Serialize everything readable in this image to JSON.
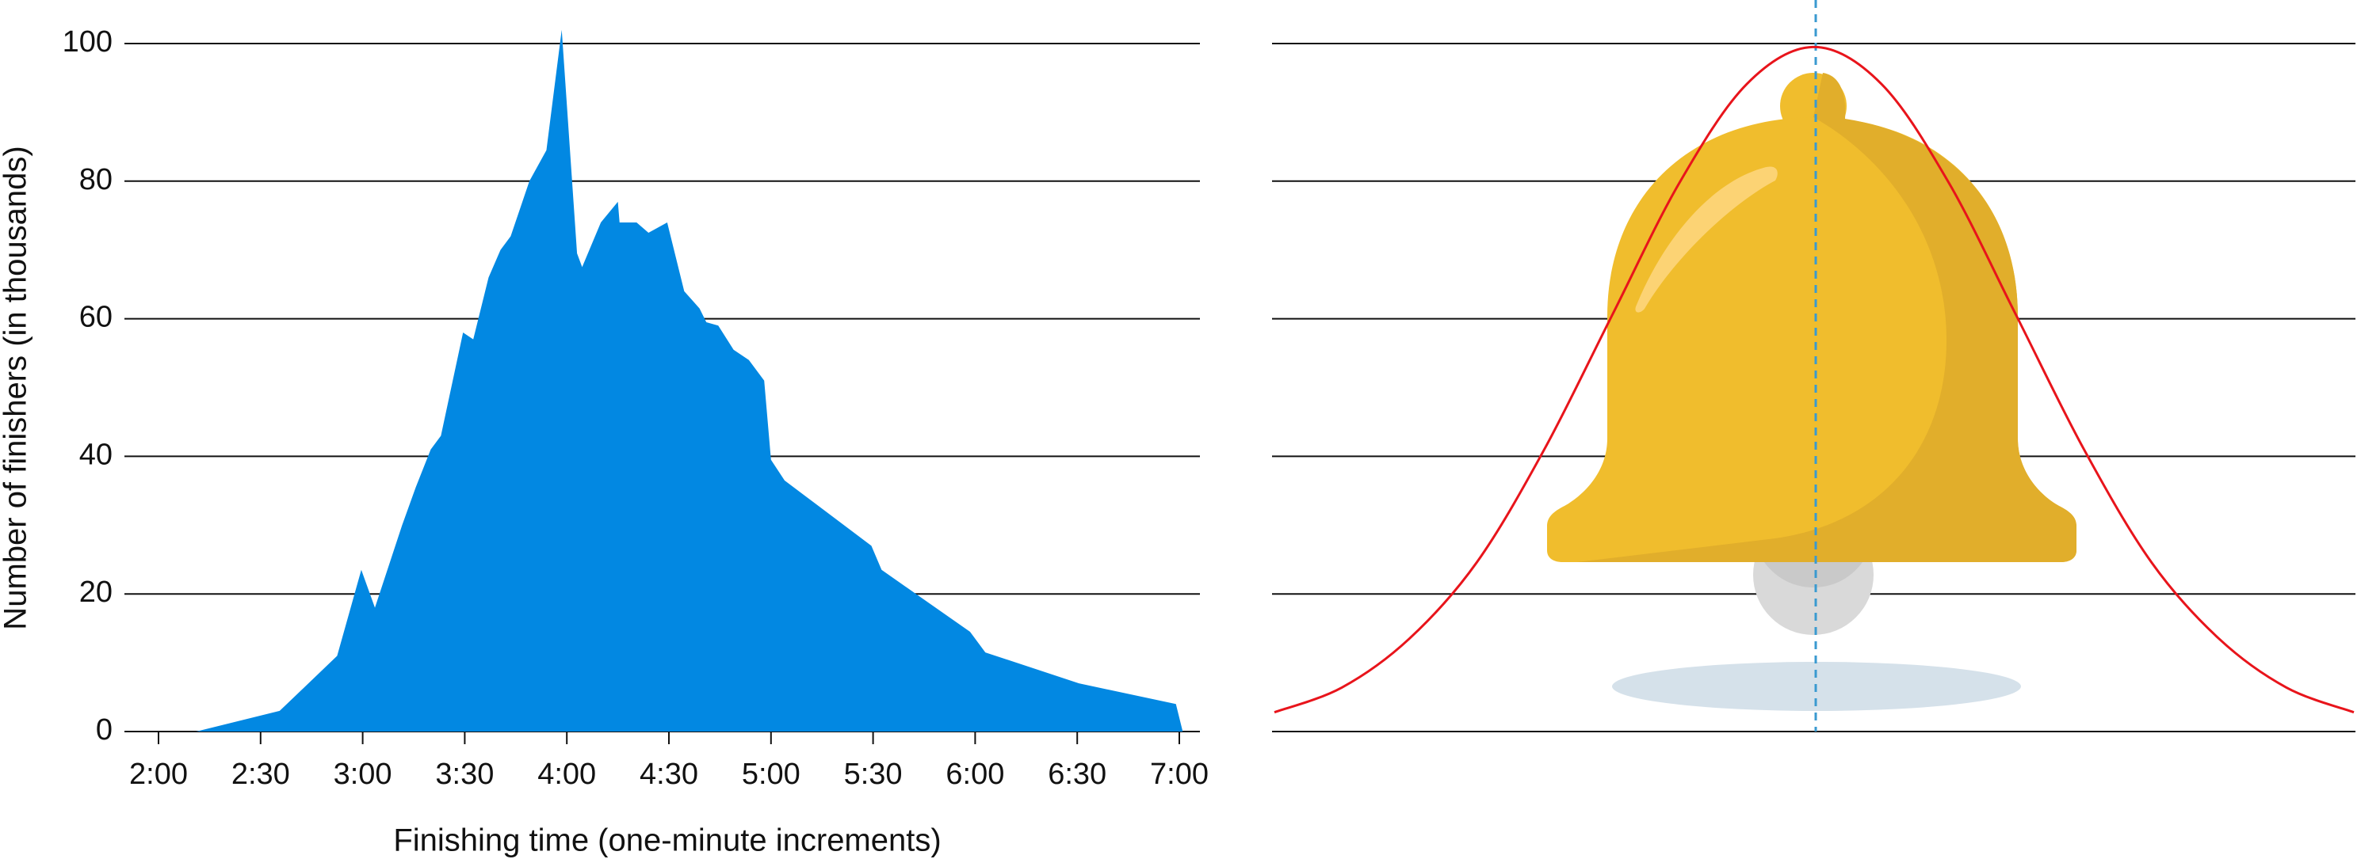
{
  "chart_data": [
    {
      "type": "area",
      "x_label": "Finishing time (one-minute increments)",
      "y_label": "Number of finishers (in thousands)",
      "x": [
        131,
        155.6,
        172.5,
        179.6,
        183.6,
        191.6,
        195.6,
        200,
        203,
        209.5,
        212.5,
        217,
        220.5,
        223.5,
        229,
        234,
        238.5,
        243,
        244.5,
        250,
        255,
        255.5,
        260.5,
        264,
        269.5,
        274.5,
        279,
        281,
        284.5,
        289,
        293.5,
        298,
        300,
        304,
        329.5,
        332.5,
        358.5,
        363,
        390.5,
        419,
        421
      ],
      "values": [
        0,
        3,
        11,
        23.5,
        18,
        30,
        35.5,
        41,
        43,
        58,
        57,
        66,
        70,
        72,
        80,
        84.5,
        102,
        69.5,
        67.5,
        74,
        77,
        74,
        74,
        72.5,
        74,
        64,
        61.5,
        59.5,
        59,
        55.5,
        54,
        51,
        39.5,
        36.5,
        27,
        23.5,
        14.5,
        11.5,
        7,
        4,
        0
      ],
      "color": "#0288e2",
      "xlim": [
        110,
        425
      ],
      "xticks": [
        {
          "value": 120,
          "label": "2:00"
        },
        {
          "value": 150,
          "label": "2:30"
        },
        {
          "value": 180,
          "label": "3:00"
        },
        {
          "value": 210,
          "label": "3:30"
        },
        {
          "value": 240,
          "label": "4:00"
        },
        {
          "value": 270,
          "label": "4:30"
        },
        {
          "value": 300,
          "label": "5:00"
        },
        {
          "value": 330,
          "label": "5:30"
        },
        {
          "value": 360,
          "label": "6:00"
        },
        {
          "value": 390,
          "label": "6:30"
        },
        {
          "value": 420,
          "label": "7:00"
        }
      ],
      "ylim": [
        0,
        100
      ],
      "yticks": [
        0,
        20,
        40,
        60,
        80,
        100
      ],
      "grid": true
    },
    {
      "type": "line",
      "values": [
        2.8,
        6.4,
        13.5,
        24.6,
        41.0,
        60.4,
        79.7,
        94.1,
        99.5,
        94.1,
        79.7,
        60.4,
        41.0,
        24.6,
        13.5,
        6.4,
        2.8
      ],
      "color": "#e8141b",
      "ylim": [
        0,
        100
      ],
      "yticks": [
        0,
        20,
        40,
        60,
        80,
        100
      ],
      "grid": true
    }
  ]
}
